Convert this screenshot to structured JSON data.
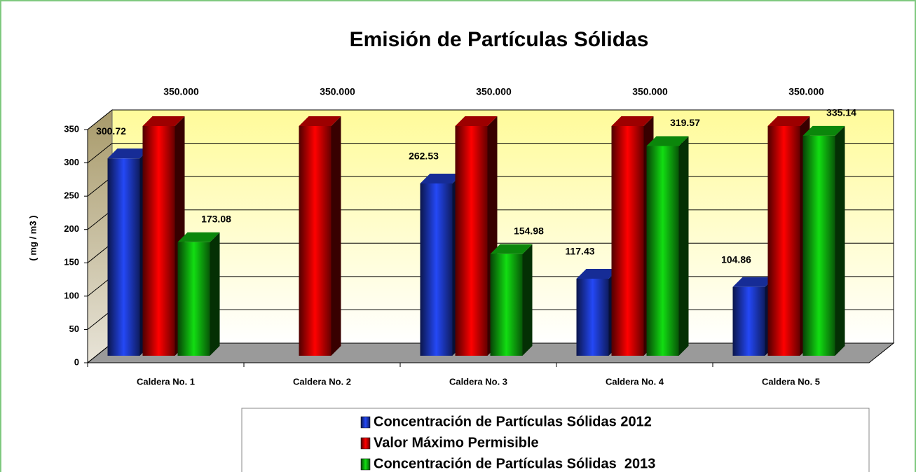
{
  "chart_data": {
    "type": "bar3d",
    "title": "Emisión de Partículas Sólidas",
    "y_label": "( mg / m3 )",
    "categories": [
      "Caldera No. 1",
      "Caldera No. 2",
      "Caldera No. 3",
      "Caldera No. 4",
      "Caldera No. 5"
    ],
    "series": [
      {
        "name": "Concentración de Partículas Sólidas 2012",
        "color": "#1f3fd6",
        "values": [
          300.72,
          null,
          262.53,
          117.43,
          104.86
        ]
      },
      {
        "name": "Valor Máximo Permisible",
        "color": "#e00000",
        "values": [
          350,
          350,
          350,
          350,
          350
        ],
        "value_labels": [
          "350.000",
          "350.000",
          "350.000",
          "350.000",
          "350.000"
        ]
      },
      {
        "name": "Concentración de Partículas Sólidas  2013",
        "color": "#10c010",
        "values": [
          173.08,
          null,
          154.98,
          319.57,
          335.14
        ]
      }
    ],
    "ylim": [
      0,
      350
    ],
    "yticks": [
      0,
      50,
      100,
      150,
      200,
      250,
      300,
      350
    ],
    "grid": true,
    "legend": "bottom"
  }
}
